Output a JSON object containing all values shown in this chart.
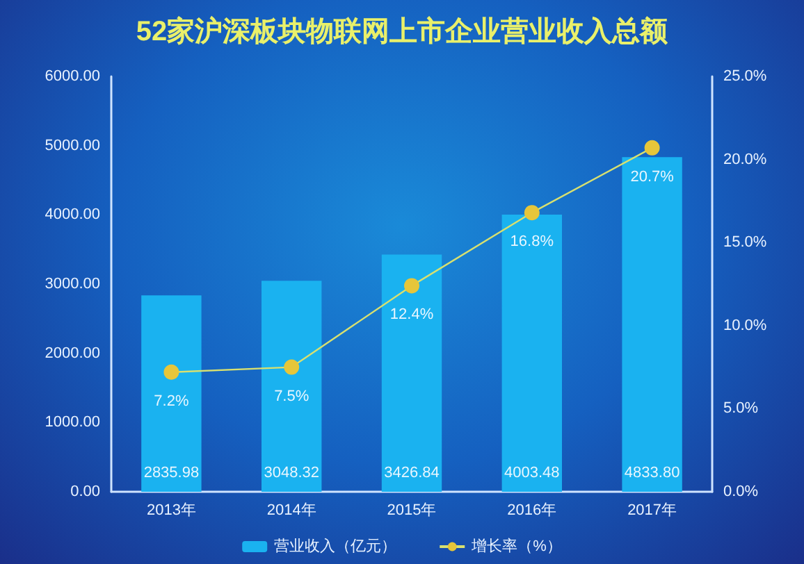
{
  "chart_data": {
    "type": "bar",
    "title": "52家沪深板块物联网上市企业营业收入总额",
    "categories": [
      "2013年",
      "2014年",
      "2015年",
      "2016年",
      "2017年"
    ],
    "series": [
      {
        "name": "营业收入（亿元）",
        "color": "#1ab2f0",
        "values": [
          2835.98,
          3048.32,
          3426.84,
          4003.48,
          4833.8
        ],
        "value_labels": [
          "2835.98",
          "3048.32",
          "3426.84",
          "4003.48",
          "4833.80"
        ]
      },
      {
        "name": "增长率（%）",
        "type": "line",
        "axis": "y2",
        "color": "#e6c63a",
        "marker": "circle",
        "values": [
          7.2,
          7.5,
          12.4,
          16.8,
          20.7
        ],
        "value_labels": [
          "7.2%",
          "7.5%",
          "12.4%",
          "16.8%",
          "20.7%"
        ]
      }
    ],
    "ylim": [
      0,
      6000
    ],
    "yticks": [
      {
        "value": 0,
        "label": "0.00"
      },
      {
        "value": 1000,
        "label": "1000.00"
      },
      {
        "value": 2000,
        "label": "2000.00"
      },
      {
        "value": 3000,
        "label": "3000.00"
      },
      {
        "value": 4000,
        "label": "4000.00"
      },
      {
        "value": 5000,
        "label": "5000.00"
      },
      {
        "value": 6000,
        "label": "6000.00"
      }
    ],
    "y2lim": [
      0,
      25
    ],
    "y2ticks": [
      {
        "value": 0,
        "label": "0.0%"
      },
      {
        "value": 5,
        "label": "5.0%"
      },
      {
        "value": 10,
        "label": "10.0%"
      },
      {
        "value": 15,
        "label": "15.0%"
      },
      {
        "value": 20,
        "label": "20.0%"
      },
      {
        "value": 25,
        "label": "25.0%"
      }
    ],
    "grid": false,
    "legend": "bottom"
  }
}
